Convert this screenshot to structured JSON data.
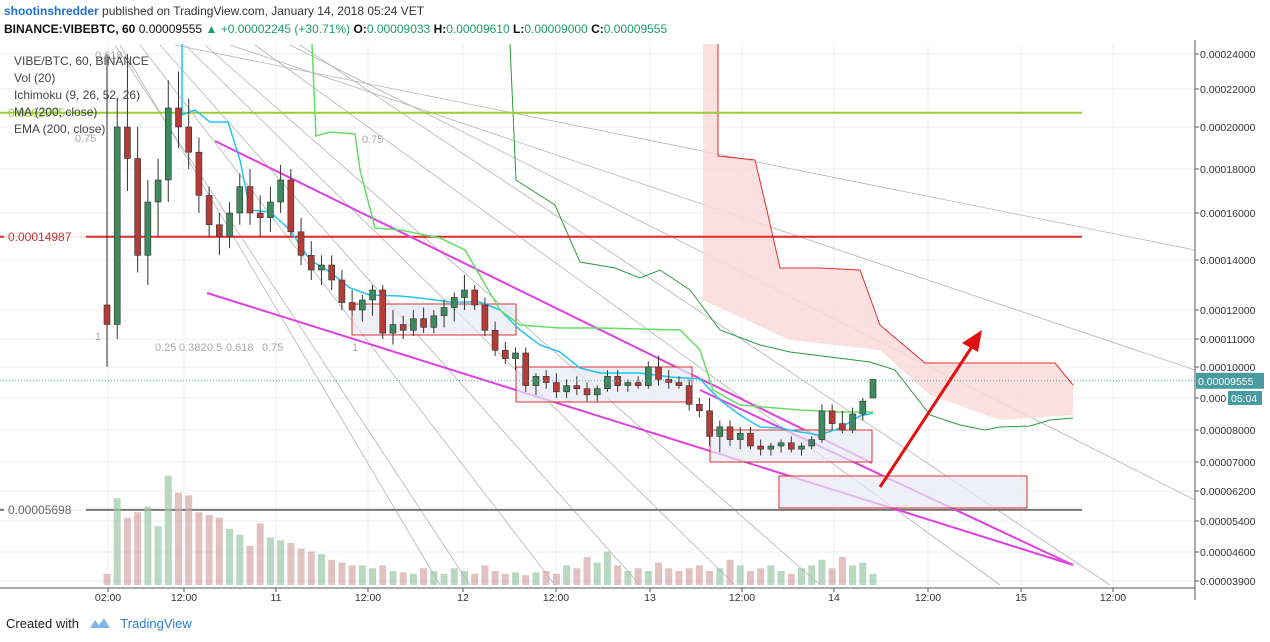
{
  "header": {
    "author": "shootinshredder",
    "published_text": "published on TradingView.com, January 14, 2018 05:24 VET",
    "symbol": "BINANCE:VIBEBTC, 60",
    "last": "0.00009555",
    "change": "+0.00002245 (+30.71%)",
    "o_label": "O:",
    "o": "0.00009033",
    "h_label": "H:",
    "h": "0.00009610",
    "l_label": "L:",
    "l": "0.00009000",
    "c_label": "C:",
    "c": "0.00009555"
  },
  "legend": {
    "title": "VIBE/BTC, 60, BINANCE",
    "items": [
      "Vol (20)",
      "Ichimoku (9, 26, 52, 26)",
      "MA (200, close)",
      "EMA (200, close)"
    ]
  },
  "footer": {
    "created_with": "Created with",
    "brand": "TradingView"
  },
  "colors": {
    "up": "#3d8a5f",
    "down": "#b43c37",
    "channel": "#e040e0",
    "resistance": "#e02828",
    "support": "#777777",
    "green_level": "#9acd32",
    "tenkan": "#22c5f0",
    "kijun": "#66dd66",
    "cloud": "#fbd9d9",
    "box": "#d83030",
    "arrow": "#e01010"
  },
  "chart_data": {
    "type": "candlestick",
    "price_axis_ticks": [
      "0.00024000",
      "0.00022000",
      "0.00020000",
      "0.00018000",
      "0.00016000",
      "0.00014000",
      "0.00012000",
      "0.00011000",
      "0.00010000",
      "0.000",
      "0.00008000",
      "0.00007000",
      "0.00006200",
      "0.00005400",
      "0.00004600",
      "0.00003900"
    ],
    "time_axis_ticks": [
      "02:00",
      "12:00",
      "11",
      "12:00",
      "12",
      "12:00",
      "13",
      "12:00",
      "14",
      "12:00",
      "15",
      "12:00"
    ],
    "last_price_label": "0.00009555",
    "countdown_label": "05:04",
    "levels": [
      {
        "label": "0.00014987",
        "price": 0.00014987
      },
      {
        "label": "0.00005698",
        "price": 5.698e-05
      },
      {
        "label": "0.0002075",
        "price": 0.0002075
      }
    ],
    "fib_labels": [
      "0.618",
      "0.75",
      "1",
      "0.25",
      "0.382",
      "0.5",
      "0.618",
      "0.75",
      "1",
      "0.75"
    ],
    "candles": [
      [
        0.000122,
        0.00024,
        0.0001,
        0.000115
      ],
      [
        0.000115,
        0.000215,
        0.00011,
        0.0002
      ],
      [
        0.0002,
        0.00024,
        0.00017,
        0.000185
      ],
      [
        0.000185,
        0.0002,
        0.000135,
        0.000142
      ],
      [
        0.000142,
        0.000175,
        0.00013,
        0.000165
      ],
      [
        0.000165,
        0.000185,
        0.00015,
        0.000175
      ],
      [
        0.000175,
        0.000225,
        0.000165,
        0.00021
      ],
      [
        0.00021,
        0.00023,
        0.00019,
        0.0002
      ],
      [
        0.0002,
        0.000215,
        0.00018,
        0.000188
      ],
      [
        0.000188,
        0.000195,
        0.00016,
        0.000168
      ],
      [
        0.000168,
        0.000172,
        0.00015,
        0.000155
      ],
      [
        0.000155,
        0.00016,
        0.000142,
        0.00015
      ],
      [
        0.00015,
        0.000165,
        0.000145,
        0.00016
      ],
      [
        0.00016,
        0.000178,
        0.000155,
        0.000172
      ],
      [
        0.000172,
        0.00018,
        0.000155,
        0.00016
      ],
      [
        0.00016,
        0.000168,
        0.00015,
        0.000158
      ],
      [
        0.000158,
        0.000172,
        0.000152,
        0.000165
      ],
      [
        0.000165,
        0.000182,
        0.00016,
        0.000175
      ],
      [
        0.000175,
        0.00018,
        0.00015,
        0.000152
      ],
      [
        0.000152,
        0.000158,
        0.000138,
        0.000142
      ],
      [
        0.000142,
        0.000148,
        0.000132,
        0.000136
      ],
      [
        0.000136,
        0.000142,
        0.00013,
        0.000138
      ],
      [
        0.000138,
        0.000142,
        0.000128,
        0.000132
      ],
      [
        0.000132,
        0.000136,
        0.00012,
        0.000123
      ],
      [
        0.000123,
        0.000128,
        0.000118,
        0.00012
      ],
      [
        0.00012,
        0.000126,
        0.000116,
        0.000124
      ],
      [
        0.000124,
        0.00013,
        0.000118,
        0.000128
      ],
      [
        0.000128,
        0.00013,
        0.00011,
        0.000112
      ],
      [
        0.000112,
        0.00012,
        0.000108,
        0.000115
      ],
      [
        0.000115,
        0.000118,
        0.00011,
        0.000113
      ],
      [
        0.000113,
        0.00012,
        0.000111,
        0.000117
      ],
      [
        0.000117,
        0.000121,
        0.000112,
        0.000114
      ],
      [
        0.000114,
        0.00012,
        0.000112,
        0.000118
      ],
      [
        0.000118,
        0.000124,
        0.000114,
        0.000121
      ],
      [
        0.000121,
        0.000127,
        0.000116,
        0.000125
      ],
      [
        0.000125,
        0.000134,
        0.00012,
        0.000128
      ],
      [
        0.000128,
        0.00013,
        0.00012,
        0.000122
      ],
      [
        0.000122,
        0.000125,
        0.000111,
        0.000113
      ],
      [
        0.000113,
        0.000116,
        0.000104,
        0.000106
      ],
      [
        0.000106,
        0.000109,
        0.000101,
        0.000103
      ],
      [
        0.000103,
        0.000107,
        9.9e-05,
        0.000105
      ],
      [
        0.000105,
        0.000107,
        9.2e-05,
        9.4e-05
      ],
      [
        9.4e-05,
        9.8e-05,
        9.1e-05,
        9.7e-05
      ],
      [
        9.7e-05,
        9.9e-05,
        9.3e-05,
        9.5e-05
      ],
      [
        9.5e-05,
        9.8e-05,
        9e-05,
        9.2e-05
      ],
      [
        9.2e-05,
        9.6e-05,
        9e-05,
        9.4e-05
      ],
      [
        9.4e-05,
        9.7e-05,
        9.1e-05,
        9.3e-05
      ],
      [
        9.3e-05,
        9.5e-05,
        8.9e-05,
        9.1e-05
      ],
      [
        9.1e-05,
        9.4e-05,
        8.9e-05,
        9.3e-05
      ],
      [
        9.3e-05,
        9.9e-05,
        9.2e-05,
        9.7e-05
      ],
      [
        9.7e-05,
        9.9e-05,
        9.2e-05,
        9.4e-05
      ],
      [
        9.4e-05,
        9.6e-05,
        9.2e-05,
        9.5e-05
      ],
      [
        9.5e-05,
        9.7e-05,
        9.3e-05,
        9.4e-05
      ],
      [
        9.4e-05,
        0.000102,
        9.3e-05,
        0.0001
      ],
      [
        0.0001,
        0.000104,
        9.4e-05,
        9.6e-05
      ],
      [
        9.6e-05,
        9.9e-05,
        9.3e-05,
        9.5e-05
      ],
      [
        9.5e-05,
        9.7e-05,
        9.3e-05,
        9.4e-05
      ],
      [
        9.4e-05,
        9.6e-05,
        8.6e-05,
        8.8e-05
      ],
      [
        8.8e-05,
        9e-05,
        8.4e-05,
        8.6e-05
      ],
      [
        8.6e-05,
        9e-05,
        7.5e-05,
        7.8e-05
      ],
      [
        7.8e-05,
        8.3e-05,
        7.3e-05,
        8.1e-05
      ],
      [
        8.1e-05,
        8.3e-05,
        7.5e-05,
        7.7e-05
      ],
      [
        7.7e-05,
        8.1e-05,
        7.4e-05,
        7.9e-05
      ],
      [
        7.9e-05,
        8.1e-05,
        7.4e-05,
        7.5e-05
      ],
      [
        7.5e-05,
        7.7e-05,
        7.2e-05,
        7.4e-05
      ],
      [
        7.4e-05,
        7.6e-05,
        7.2e-05,
        7.5e-05
      ],
      [
        7.5e-05,
        7.7e-05,
        7.3e-05,
        7.6e-05
      ],
      [
        7.6e-05,
        7.8e-05,
        7.3e-05,
        7.4e-05
      ],
      [
        7.4e-05,
        7.6e-05,
        7.2e-05,
        7.5e-05
      ],
      [
        7.5e-05,
        7.8e-05,
        7.4e-05,
        7.7e-05
      ],
      [
        7.7e-05,
        8.8e-05,
        7.6e-05,
        8.6e-05
      ],
      [
        8.6e-05,
        8.8e-05,
        8e-05,
        8.2e-05
      ],
      [
        8.2e-05,
        8.6e-05,
        7.9e-05,
        8e-05
      ],
      [
        8e-05,
        8.7e-05,
        7.9e-05,
        8.5e-05
      ],
      [
        8.5e-05,
        9e-05,
        8.3e-05,
        8.9e-05
      ],
      [
        9e-05,
        9.6e-05,
        9e-05,
        9.6e-05
      ]
    ]
  }
}
